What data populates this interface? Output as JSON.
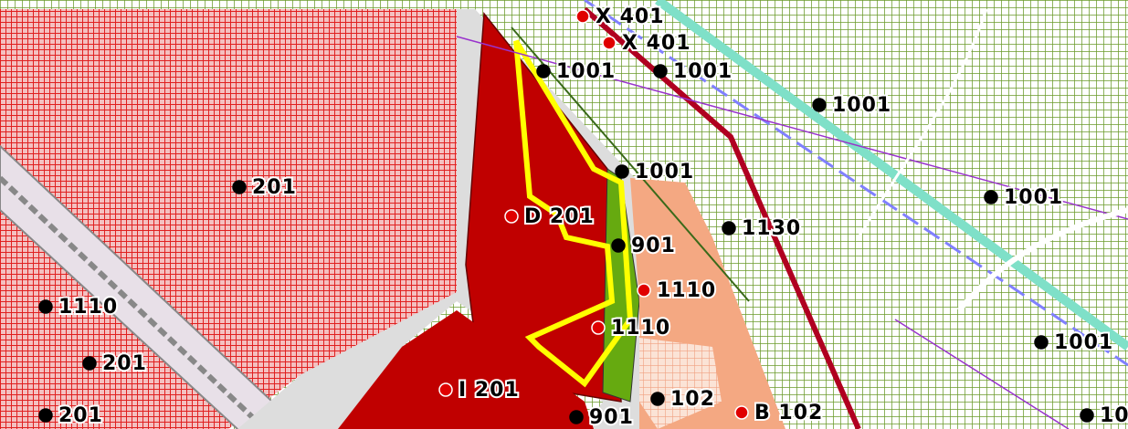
{
  "labels": [
    {
      "text": "X 401",
      "color": "#e00000"
    },
    {
      "text": "X 401",
      "color": "#e00000"
    },
    {
      "text": "1001",
      "color": "#000000"
    },
    {
      "text": "1001",
      "color": "#000000"
    },
    {
      "text": "1001",
      "color": "#000000"
    },
    {
      "text": "1001",
      "color": "#000000"
    },
    {
      "text": "201",
      "color": "#000000"
    },
    {
      "text": "D 201",
      "color": "#e00000"
    },
    {
      "text": "1001",
      "color": "#000000"
    },
    {
      "text": "1130",
      "color": "#000000"
    },
    {
      "text": "901",
      "color": "#000000"
    },
    {
      "text": "1110",
      "color": "#e00000"
    },
    {
      "text": "1110",
      "color": "#000000"
    },
    {
      "text": "1110",
      "color": "#e00000"
    },
    {
      "text": "1001",
      "color": "#000000"
    },
    {
      "text": "201",
      "color": "#000000"
    },
    {
      "text": "I 201",
      "color": "#e00000"
    },
    {
      "text": "102",
      "color": "#000000"
    },
    {
      "text": "B 102",
      "color": "#e00000"
    },
    {
      "text": "201",
      "color": "#000000"
    },
    {
      "text": "901",
      "color": "#000000"
    },
    {
      "text": "10",
      "color": "#000000"
    }
  ]
}
